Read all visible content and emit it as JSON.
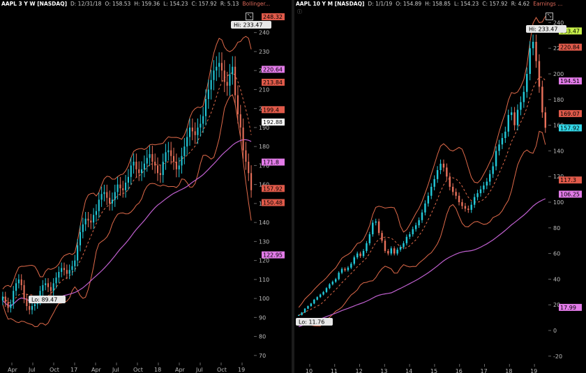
{
  "left": {
    "symbol": "AAPL 3 Y W [NASDAQ]",
    "date": "D: 12/31/18",
    "open": "O: 158.53",
    "high": "H: 159.36",
    "low": "L: 154.23",
    "close": "C: 157.92",
    "range": "R: 5.13",
    "study": "Bollinger...",
    "hi_label": "Hi: 233.47",
    "lo_label": "Lo: 89.47",
    "price_tags": [
      {
        "text": "248.32",
        "value": 248.32,
        "bg": "#e05a4a",
        "fg": "#000000"
      },
      {
        "text": "220.64",
        "value": 220.64,
        "bg": "#e27be8",
        "fg": "#000000"
      },
      {
        "text": "213.84",
        "value": 213.84,
        "bg": "#e05a4a",
        "fg": "#000000"
      },
      {
        "text": "199.4",
        "value": 199.4,
        "bg": "#e05a4a",
        "fg": "#000000"
      },
      {
        "text": "192.88",
        "value": 192.88,
        "bg": "#ffffff",
        "fg": "#000000"
      },
      {
        "text": "171.8",
        "value": 171.8,
        "bg": "#e27be8",
        "fg": "#000000"
      },
      {
        "text": "157.92",
        "value": 157.92,
        "bg": "#e05a4a",
        "fg": "#000000"
      },
      {
        "text": "150.48",
        "value": 150.48,
        "bg": "#e05a4a",
        "fg": "#000000"
      },
      {
        "text": "122.95",
        "value": 122.95,
        "bg": "#e27be8",
        "fg": "#000000"
      }
    ]
  },
  "right": {
    "symbol": "AAPL 10 Y M [NASDAQ]",
    "date": "D: 1/1/19",
    "open": "O: 154.89",
    "high": "H: 158.85",
    "low": "L: 154.23",
    "close": "C: 157.92",
    "range": "R: 4.62",
    "study": "Earnings ...",
    "hi_label": "Hi: 233.47",
    "lo_label": "Lo: 11.76",
    "price_tags": [
      {
        "text": "233.47",
        "value": 233.47,
        "bg": "#c8f04a",
        "fg": "#000000"
      },
      {
        "text": "220.84",
        "value": 220.84,
        "bg": "#e05a4a",
        "fg": "#000000"
      },
      {
        "text": "194.51",
        "value": 194.51,
        "bg": "#e27be8",
        "fg": "#000000"
      },
      {
        "text": "169.07",
        "value": 169.07,
        "bg": "#e05a4a",
        "fg": "#000000"
      },
      {
        "text": "157.92",
        "value": 157.92,
        "bg": "#33d8e8",
        "fg": "#000000"
      },
      {
        "text": "117.3",
        "value": 117.3,
        "bg": "#e05a4a",
        "fg": "#000000"
      },
      {
        "text": "106.25",
        "value": 106.25,
        "bg": "#e27be8",
        "fg": "#000000"
      },
      {
        "text": "17.99",
        "value": 17.99,
        "bg": "#e27be8",
        "fg": "#000000"
      }
    ]
  },
  "colors": {
    "up": "#22c8d8",
    "down": "#e8705a",
    "band": "#e06a4a",
    "mid": "#e06a4a",
    "ma": "#c060d0",
    "grid": "#2a2a2a"
  },
  "chart_data": [
    {
      "type": "candlestick",
      "title": "AAPL 3 Y W [NASDAQ]",
      "ylim": [
        67,
        252
      ],
      "yticks": [
        70,
        80,
        90,
        100,
        110,
        120,
        130,
        140,
        150,
        160,
        170,
        180,
        190,
        200,
        210,
        220,
        230,
        240
      ],
      "xticks": [
        "Apr",
        "Jul",
        "Oct",
        "17",
        "Apr",
        "Jul",
        "Oct",
        "18",
        "Apr",
        "Jul",
        "Oct",
        "19"
      ],
      "close": [
        101,
        98,
        95,
        97,
        104,
        108,
        110,
        107,
        100,
        96,
        94,
        96,
        97,
        99,
        104,
        107,
        108,
        106,
        104,
        108,
        111,
        114,
        116,
        115,
        113,
        115,
        117,
        120,
        128,
        135,
        139,
        142,
        141,
        140,
        144,
        146,
        152,
        155,
        156,
        153,
        150,
        152,
        156,
        160,
        158,
        157,
        161,
        164,
        170,
        172,
        168,
        166,
        168,
        171,
        174,
        176,
        172,
        170,
        166,
        165,
        172,
        177,
        178,
        175,
        172,
        168,
        170,
        175,
        180,
        185,
        190,
        188,
        186,
        190,
        192,
        196,
        205,
        210,
        215,
        220,
        222,
        224,
        220,
        214,
        212,
        218,
        222,
        207,
        197,
        190,
        178,
        172,
        166,
        157
      ],
      "series_lines": [
        "Bollinger upper",
        "Bollinger lower",
        "Bollinger middle",
        "moving average"
      ]
    },
    {
      "type": "candlestick",
      "title": "AAPL 10 Y M [NASDAQ]",
      "ylim": [
        -25,
        250
      ],
      "yticks": [
        -20,
        0,
        20,
        40,
        60,
        80,
        100,
        120,
        140,
        160,
        180,
        200,
        220,
        240
      ],
      "xticks": [
        "10",
        "11",
        "12",
        "13",
        "14",
        "15",
        "16",
        "17",
        "18",
        "19"
      ],
      "close": [
        12,
        14,
        17,
        19,
        21,
        24,
        26,
        28,
        30,
        33,
        36,
        38,
        40,
        45,
        48,
        47,
        49,
        52,
        57,
        60,
        58,
        62,
        68,
        75,
        84,
        85,
        76,
        70,
        62,
        60,
        64,
        60,
        63,
        65,
        68,
        73,
        75,
        79,
        82,
        86,
        92,
        99,
        105,
        112,
        118,
        125,
        130,
        127,
        120,
        112,
        108,
        105,
        100,
        97,
        95,
        94,
        98,
        104,
        107,
        110,
        113,
        116,
        122,
        128,
        140,
        145,
        150,
        155,
        168,
        170,
        160,
        172,
        178,
        186,
        200,
        220,
        225,
        210,
        190,
        170,
        158
      ],
      "series_lines": [
        "Bollinger upper",
        "Bollinger lower",
        "Bollinger middle",
        "moving average"
      ]
    }
  ]
}
